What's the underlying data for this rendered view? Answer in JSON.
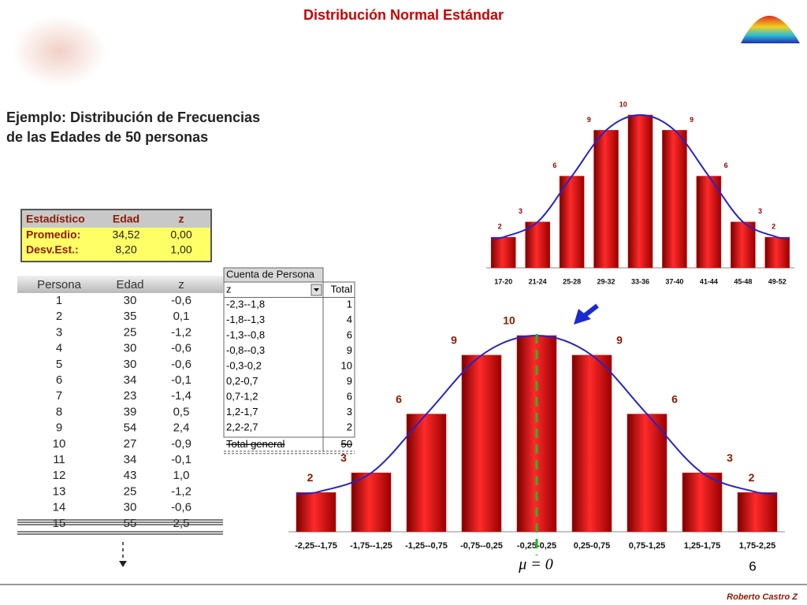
{
  "title": "Distribución Normal Estándar",
  "subtitle_lines": [
    "Ejemplo: Distribución de Frecuencias",
    "de las Edades de 50 personas"
  ],
  "stats_table": {
    "header": [
      "Estadístico",
      "Edad",
      "z"
    ],
    "rows": [
      [
        "Promedio:",
        "34,52",
        "0,00"
      ],
      [
        "Desv.Est.:",
        "8,20",
        "1,00"
      ]
    ]
  },
  "persons_table": {
    "header": [
      "Persona",
      "Edad",
      "z"
    ],
    "rows": [
      [
        "1",
        "30",
        "-0,6"
      ],
      [
        "2",
        "35",
        "0,1"
      ],
      [
        "3",
        "25",
        "-1,2"
      ],
      [
        "4",
        "30",
        "-0,6"
      ],
      [
        "5",
        "30",
        "-0,6"
      ],
      [
        "6",
        "34",
        "-0,1"
      ],
      [
        "7",
        "23",
        "-1,4"
      ],
      [
        "8",
        "39",
        "0,5"
      ],
      [
        "9",
        "54",
        "2,4"
      ],
      [
        "10",
        "27",
        "-0,9"
      ],
      [
        "11",
        "34",
        "-0,1"
      ],
      [
        "12",
        "43",
        "1,0"
      ],
      [
        "13",
        "25",
        "-1,2"
      ],
      [
        "14",
        "30",
        "-0,6"
      ],
      [
        "15",
        "55",
        "2,5"
      ]
    ]
  },
  "pivot_table": {
    "title": "Cuenta de Persona",
    "header": [
      "z",
      "Total"
    ],
    "rows": [
      [
        "-2,3--1,8",
        "1"
      ],
      [
        "-1,8--1,3",
        "4"
      ],
      [
        "-1,3--0,8",
        "6"
      ],
      [
        "-0,8--0,3",
        "9"
      ],
      [
        "-0,3-0,2",
        "10"
      ],
      [
        "0,2-0,7",
        "9"
      ],
      [
        "0,7-1,2",
        "6"
      ],
      [
        "1,2-1,7",
        "3"
      ],
      [
        "2,2-2,7",
        "2"
      ]
    ],
    "footer": [
      "Total general",
      "50"
    ]
  },
  "chart_data": [
    {
      "type": "bar",
      "categories": [
        "17-20",
        "21-24",
        "25-28",
        "29-32",
        "33-36",
        "37-40",
        "41-44",
        "45-48",
        "49-52"
      ],
      "values": [
        2,
        3,
        6,
        9,
        10,
        9,
        6,
        3,
        2
      ],
      "color": "#e00000",
      "curve_color": "#2424c8",
      "label_color": "#990000"
    },
    {
      "type": "bar",
      "categories": [
        "-2,25--1,75",
        "-1,75--1,25",
        "-1,25--0,75",
        "-0,75--0,25",
        "-0,25-0,25",
        "0,25-0,75",
        "0,75-1,25",
        "1,25-1,75",
        "1,75-2,25"
      ],
      "values": [
        2,
        3,
        6,
        9,
        10,
        9,
        6,
        3,
        2
      ],
      "color": "#e00000",
      "curve_color": "#2424c8",
      "label_color": "#8b1a00",
      "mean_line_color": "#22bb22"
    }
  ],
  "mu_label": "μ = 0",
  "page_number": "6",
  "footer": "Roberto Castro Z"
}
